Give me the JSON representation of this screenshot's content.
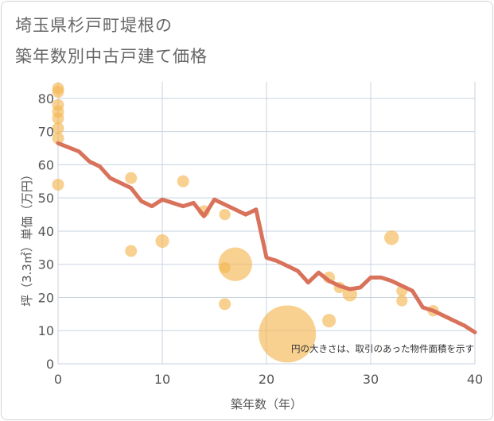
{
  "title_line1": "埼玉県杉戸町堤根の",
  "title_line2": "築年数別中古戸建て価格",
  "chart_data": {
    "type": "scatter",
    "title": "埼玉県杉戸町堤根の築年数別中古戸建て価格",
    "xlabel": "築年数（年）",
    "ylabel": "坪（3.3㎡）単価（万円）",
    "xlim": [
      0,
      40
    ],
    "ylim": [
      0,
      85
    ],
    "xticks": [
      0,
      10,
      20,
      30,
      40
    ],
    "yticks": [
      0,
      10,
      20,
      30,
      40,
      50,
      60,
      70,
      80
    ],
    "grid": true,
    "note": "円の大きさは、取引のあった物件面積を示す",
    "colors": {
      "bubble": "#f5b755",
      "line": "#d9725a",
      "grid": "#c9d3e0"
    },
    "bubbles": [
      {
        "x": 0,
        "y": 83,
        "size": 1
      },
      {
        "x": 0,
        "y": 82,
        "size": 1
      },
      {
        "x": 0,
        "y": 78,
        "size": 1
      },
      {
        "x": 0,
        "y": 76,
        "size": 1
      },
      {
        "x": 0,
        "y": 74,
        "size": 1
      },
      {
        "x": 0,
        "y": 71,
        "size": 1
      },
      {
        "x": 0,
        "y": 68,
        "size": 1
      },
      {
        "x": 0,
        "y": 54,
        "size": 1
      },
      {
        "x": 7,
        "y": 56,
        "size": 1
      },
      {
        "x": 7,
        "y": 34,
        "size": 1
      },
      {
        "x": 10,
        "y": 37,
        "size": 1.3
      },
      {
        "x": 12,
        "y": 55,
        "size": 1
      },
      {
        "x": 14,
        "y": 46,
        "size": 1
      },
      {
        "x": 16,
        "y": 45,
        "size": 0.9
      },
      {
        "x": 16,
        "y": 29,
        "size": 0.9
      },
      {
        "x": 16,
        "y": 18,
        "size": 1
      },
      {
        "x": 17,
        "y": 30,
        "size": 8
      },
      {
        "x": 22,
        "y": 9,
        "size": 23
      },
      {
        "x": 26,
        "y": 26,
        "size": 1
      },
      {
        "x": 26,
        "y": 13,
        "size": 1.3
      },
      {
        "x": 27,
        "y": 23,
        "size": 0.9
      },
      {
        "x": 28,
        "y": 21,
        "size": 1.5
      },
      {
        "x": 32,
        "y": 38,
        "size": 1.5
      },
      {
        "x": 33,
        "y": 22,
        "size": 0.9
      },
      {
        "x": 33,
        "y": 19,
        "size": 0.9
      },
      {
        "x": 36,
        "y": 16,
        "size": 0.9
      }
    ],
    "trend": {
      "x": [
        0,
        2,
        3,
        4,
        5,
        6,
        7,
        8,
        9,
        10,
        11,
        12,
        13,
        14,
        15,
        16,
        17,
        18,
        19,
        20,
        21,
        22,
        23,
        24,
        25,
        26,
        27,
        28,
        29,
        30,
        31,
        32,
        33,
        34,
        35,
        36,
        37,
        38,
        39,
        40
      ],
      "y": [
        66.5,
        64,
        61,
        59.5,
        56,
        54.5,
        53,
        49,
        47.5,
        49.5,
        48.5,
        47.5,
        48.5,
        44.5,
        49.5,
        48,
        46.5,
        45,
        46.5,
        32,
        31,
        29.5,
        28,
        24.5,
        27.5,
        25,
        23.5,
        22.5,
        23,
        26,
        26,
        25,
        23.5,
        22,
        17,
        16,
        14.5,
        13,
        11.5,
        9.5
      ]
    }
  }
}
